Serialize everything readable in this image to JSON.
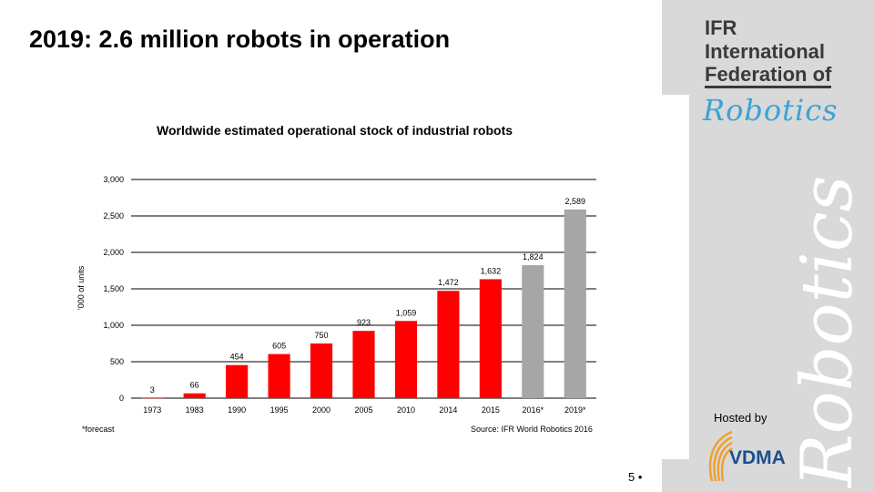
{
  "slide": {
    "title": "2019: 2.6 million robots in operation",
    "page_number": "5 •"
  },
  "branding": {
    "org_lines": [
      "IFR",
      "International",
      "Federation of"
    ],
    "org_script": "Robotics",
    "hosted_by": "Hosted by",
    "host_logo": "VDMA",
    "panel_color": "#d9d9d9"
  },
  "chart_data": {
    "type": "bar",
    "title": "Worldwide estimated operational stock of industrial robots",
    "ylabel": "'000 of units",
    "xlabel": "",
    "ylim": [
      0,
      3000
    ],
    "yticks": [
      "0",
      "500",
      "1,000",
      "1,500",
      "2,000",
      "2,500",
      "3,000"
    ],
    "ytick_values": [
      0,
      500,
      1000,
      1500,
      2000,
      2500,
      3000
    ],
    "categories": [
      "1973",
      "1983",
      "1990",
      "1995",
      "2000",
      "2005",
      "2010",
      "2014",
      "2015",
      "2016*",
      "2019*"
    ],
    "values": [
      3,
      66,
      454,
      605,
      750,
      923,
      1059,
      1472,
      1632,
      1824,
      2589
    ],
    "data_labels": [
      "3",
      "66",
      "454",
      "605",
      "750",
      "923",
      "1,059",
      "1,472",
      "1,632",
      "1,824",
      "2,589"
    ],
    "forecast": [
      false,
      false,
      false,
      false,
      false,
      false,
      false,
      false,
      false,
      true,
      true
    ],
    "colors": {
      "actual": "#ff0000",
      "forecast": "#a6a6a6"
    },
    "grid": true,
    "footnote": "*forecast",
    "source": "Source: IFR World Robotics 2016"
  }
}
